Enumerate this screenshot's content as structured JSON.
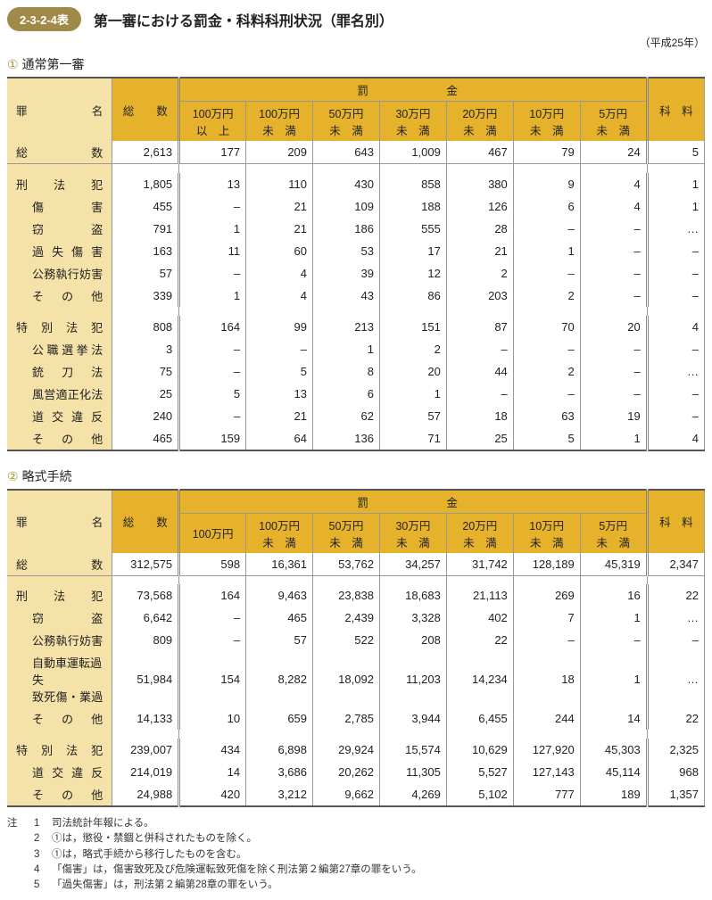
{
  "title_badge": "2-3-2-4表",
  "title_text": "第一審における罰金・科料科刑状況（罪名別）",
  "year_note": "（平成25年）",
  "section1_label": "通常第一審",
  "section2_label": "略式手続",
  "circle1": "①",
  "circle2": "②",
  "headers": {
    "zaimei": "罪　　　名",
    "sosu": "総　　数",
    "bakkin_group": "罰　　　金",
    "karyo": "科　料"
  },
  "fine_headers_t1": [
    "100万円\n以　上",
    "100万円\n未　満",
    "50万円\n未　満",
    "30万円\n未　満",
    "20万円\n未　満",
    "10万円\n未　満",
    "5万円\n未　満"
  ],
  "fine_headers_t2": [
    "100万円",
    "100万円\n未　満",
    "50万円\n未　満",
    "30万円\n未　満",
    "20万円\n未　満",
    "10万円\n未　満",
    "5万円\n未　満"
  ],
  "t1": [
    {
      "label": "総　　　　　数",
      "indent": 0,
      "v": [
        "2,613",
        "177",
        "209",
        "643",
        "1,009",
        "467",
        "79",
        "24",
        "5"
      ]
    },
    {
      "spacer": true
    },
    {
      "label": "刑　法　犯",
      "indent": 0,
      "v": [
        "1,805",
        "13",
        "110",
        "430",
        "858",
        "380",
        "9",
        "4",
        "1"
      ]
    },
    {
      "label": "傷　　　害",
      "indent": 1,
      "v": [
        "455",
        "–",
        "21",
        "109",
        "188",
        "126",
        "6",
        "4",
        "1"
      ]
    },
    {
      "label": "窃　　　盗",
      "indent": 1,
      "v": [
        "791",
        "1",
        "21",
        "186",
        "555",
        "28",
        "–",
        "–",
        "…"
      ]
    },
    {
      "label": "過 失 傷 害",
      "indent": 1,
      "v": [
        "163",
        "11",
        "60",
        "53",
        "17",
        "21",
        "1",
        "–",
        "–"
      ]
    },
    {
      "label": "公務執行妨害",
      "indent": 1,
      "v": [
        "57",
        "–",
        "4",
        "39",
        "12",
        "2",
        "–",
        "–",
        "–"
      ]
    },
    {
      "label": "そ　の　他",
      "indent": 1,
      "v": [
        "339",
        "1",
        "4",
        "43",
        "86",
        "203",
        "2",
        "–",
        "–"
      ]
    },
    {
      "spacer": true
    },
    {
      "label": "特 別 法 犯",
      "indent": 0,
      "v": [
        "808",
        "164",
        "99",
        "213",
        "151",
        "87",
        "70",
        "20",
        "4"
      ]
    },
    {
      "label": "公職選挙法",
      "indent": 1,
      "v": [
        "3",
        "–",
        "–",
        "1",
        "2",
        "–",
        "–",
        "–",
        "–"
      ]
    },
    {
      "label": "銃　刀　法",
      "indent": 1,
      "v": [
        "75",
        "–",
        "5",
        "8",
        "20",
        "44",
        "2",
        "–",
        "…"
      ]
    },
    {
      "label": "風営適正化法",
      "indent": 1,
      "v": [
        "25",
        "5",
        "13",
        "6",
        "1",
        "–",
        "–",
        "–",
        "–"
      ]
    },
    {
      "label": "道 交 違 反",
      "indent": 1,
      "v": [
        "240",
        "–",
        "21",
        "62",
        "57",
        "18",
        "63",
        "19",
        "–"
      ]
    },
    {
      "label": "そ　の　他",
      "indent": 1,
      "v": [
        "465",
        "159",
        "64",
        "136",
        "71",
        "25",
        "5",
        "1",
        "4"
      ]
    }
  ],
  "t2": [
    {
      "label": "総　　　　　数",
      "indent": 0,
      "v": [
        "312,575",
        "598",
        "16,361",
        "53,762",
        "34,257",
        "31,742",
        "128,189",
        "45,319",
        "2,347"
      ]
    },
    {
      "spacer": true
    },
    {
      "label": "刑　法　犯",
      "indent": 0,
      "v": [
        "73,568",
        "164",
        "9,463",
        "23,838",
        "18,683",
        "21,113",
        "269",
        "16",
        "22"
      ]
    },
    {
      "label": "窃　　　盗",
      "indent": 1,
      "v": [
        "6,642",
        "–",
        "465",
        "2,439",
        "3,328",
        "402",
        "7",
        "1",
        "…"
      ]
    },
    {
      "label": "公務執行妨害",
      "indent": 1,
      "v": [
        "809",
        "–",
        "57",
        "522",
        "208",
        "22",
        "–",
        "–",
        "–"
      ]
    },
    {
      "label": "自動車運転過失\n致死傷・業過",
      "indent": 1,
      "v": [
        "51,984",
        "154",
        "8,282",
        "18,092",
        "11,203",
        "14,234",
        "18",
        "1",
        "…"
      ]
    },
    {
      "label": "そ　の　他",
      "indent": 1,
      "v": [
        "14,133",
        "10",
        "659",
        "2,785",
        "3,944",
        "6,455",
        "244",
        "14",
        "22"
      ]
    },
    {
      "spacer": true
    },
    {
      "label": "特 別 法 犯",
      "indent": 0,
      "v": [
        "239,007",
        "434",
        "6,898",
        "29,924",
        "15,574",
        "10,629",
        "127,920",
        "45,303",
        "2,325"
      ]
    },
    {
      "label": "道 交 違 反",
      "indent": 1,
      "v": [
        "214,019",
        "14",
        "3,686",
        "20,262",
        "11,305",
        "5,527",
        "127,143",
        "45,114",
        "968"
      ]
    },
    {
      "label": "そ　の　他",
      "indent": 1,
      "v": [
        "24,988",
        "420",
        "3,212",
        "9,662",
        "4,269",
        "5,102",
        "777",
        "189",
        "1,357"
      ]
    }
  ],
  "notes_label": "注",
  "notes": [
    "司法統計年報による。",
    "①は，懲役・禁錮と併科されたものを除く。",
    "①は，略式手続から移行したものを含む。",
    "「傷害」は，傷害致死及び危険運転致死傷を除く刑法第２編第27章の罪をいう。",
    "「過失傷害」は，刑法第２編第28章の罪をいう。"
  ]
}
